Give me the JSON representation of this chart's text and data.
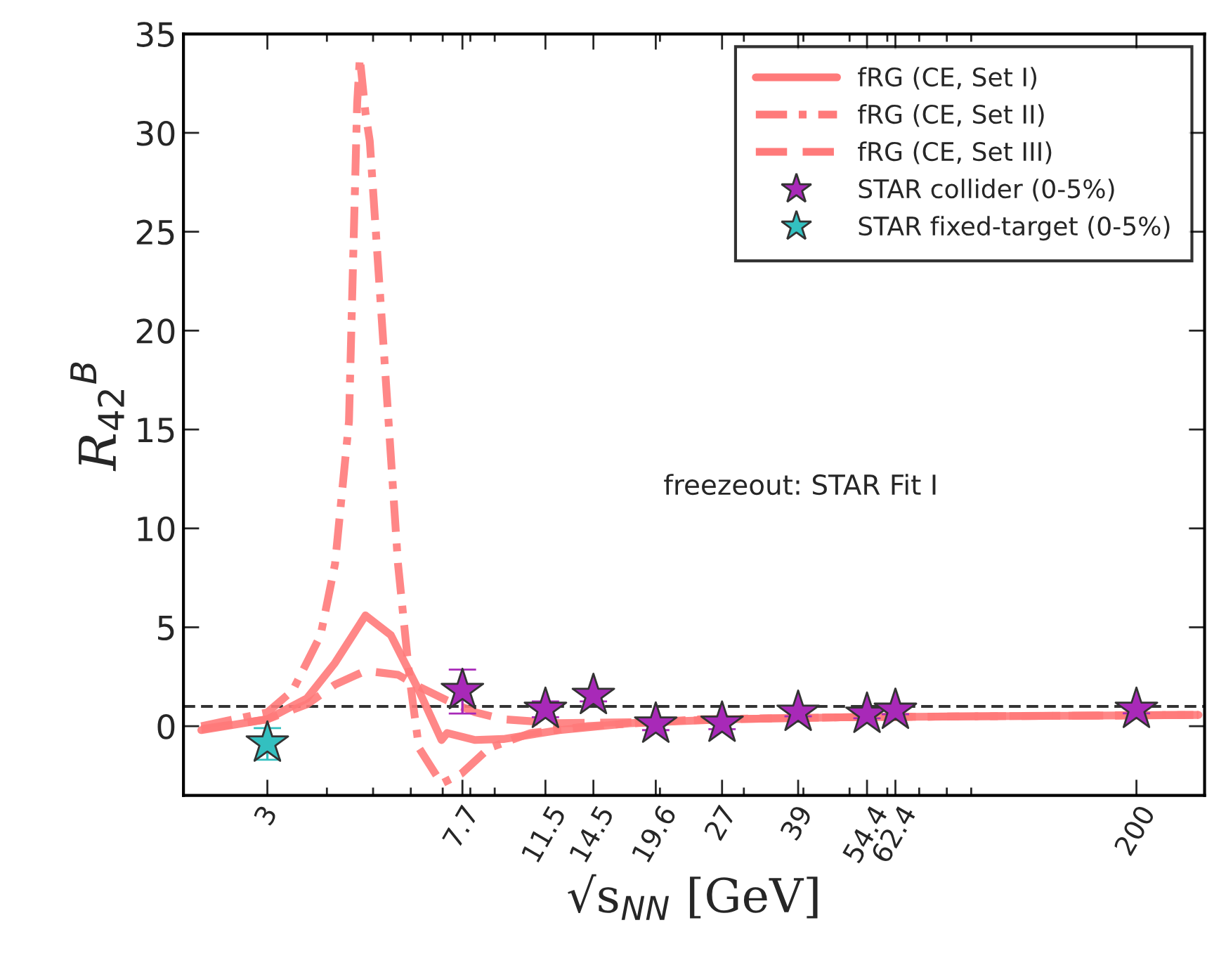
{
  "chart_data": {
    "type": "line",
    "xlabel": "√s$_{NN}$ [GeV]",
    "ylabel": "R$_{42}$$^{B}$",
    "log": "x",
    "xlim": [
      2,
      278
    ],
    "ylim": [
      -3.5,
      35
    ],
    "xticks": [
      3,
      7.7,
      11.5,
      14.5,
      19.6,
      27,
      39,
      54.4,
      62.4,
      200
    ],
    "yticks": [
      0,
      5,
      10,
      15,
      20,
      25,
      30,
      35
    ],
    "grid": false,
    "legend": "top right",
    "annotations": [
      "freezeout: STAR Fit I"
    ],
    "ref_lines": [
      {
        "axis": "y",
        "value": 1,
        "label": null,
        "color": "#333333",
        "line_style": "dashed"
      }
    ],
    "series": [
      {
        "name": "fRG (CE, Set I)",
        "type": "line",
        "line_style": "solid",
        "color": "#ff7a7a",
        "x": [
          2.18,
          3.0,
          3.63,
          4.16,
          4.82,
          5.45,
          6.24,
          6.96,
          7.15,
          8.19,
          9.38,
          12.3,
          17.3,
          27.8,
          47.9,
          94,
          270
        ],
        "values": [
          -0.2,
          0.35,
          1.4,
          3.2,
          5.6,
          4.6,
          1.8,
          -0.7,
          -0.35,
          -0.7,
          -0.65,
          -0.2,
          0.15,
          0.35,
          0.45,
          0.5,
          0.57
        ]
      },
      {
        "name": "fRG (CE, Set II)",
        "type": "line",
        "line_style": "dashdot",
        "color": "#ff7a7a",
        "x": [
          2.18,
          3.0,
          3.39,
          3.88,
          4.16,
          4.45,
          4.63,
          4.69,
          4.82,
          4.92,
          5.27,
          5.64,
          5.96,
          6.24,
          6.96,
          7.66,
          8.77,
          10.7,
          14.1,
          24.3,
          47.9,
          94,
          270
        ],
        "values": [
          0.0,
          0.7,
          1.8,
          4.6,
          8.2,
          15.4,
          31.5,
          33.8,
          31.0,
          29.6,
          18.9,
          8.2,
          2.5,
          -1.1,
          -2.9,
          -2.4,
          -1.1,
          -0.35,
          0.0,
          0.35,
          0.45,
          0.5,
          0.57
        ]
      },
      {
        "name": "fRG (CE, Set III)",
        "type": "line",
        "line_style": "dashed",
        "color": "#ff7a7a",
        "x": [
          2.18,
          3.0,
          3.63,
          4.16,
          4.82,
          5.64,
          6.24,
          7.15,
          8.19,
          9.38,
          12.3,
          17.3,
          27.8,
          47.9,
          94,
          270
        ],
        "values": [
          -0.15,
          0.35,
          1.1,
          2.1,
          2.8,
          2.6,
          2.0,
          1.3,
          0.7,
          0.35,
          0.15,
          0.2,
          0.35,
          0.45,
          0.5,
          0.57
        ]
      },
      {
        "name": "STAR collider (0-5%)",
        "type": "scatter",
        "marker": "star",
        "color": "#a829b8",
        "x": [
          7.7,
          11.5,
          14.5,
          19.6,
          27,
          39,
          54.4,
          62.4,
          200
        ],
        "values": [
          1.8,
          0.85,
          1.55,
          0.1,
          0.15,
          0.7,
          0.6,
          0.8,
          0.85
        ],
        "errors": [
          [
            0.64,
            2.86
          ],
          0.4,
          0.3,
          0.3,
          0.3,
          0.2,
          0.2,
          0.2,
          0.2
        ]
      },
      {
        "name": "STAR fixed-target (0-5%)",
        "type": "scatter",
        "marker": "star",
        "color": "#33c0c0",
        "x": [
          3
        ],
        "values": [
          -0.86
        ],
        "errors": [
          [
            -1.7,
            -0.1
          ]
        ]
      }
    ]
  }
}
